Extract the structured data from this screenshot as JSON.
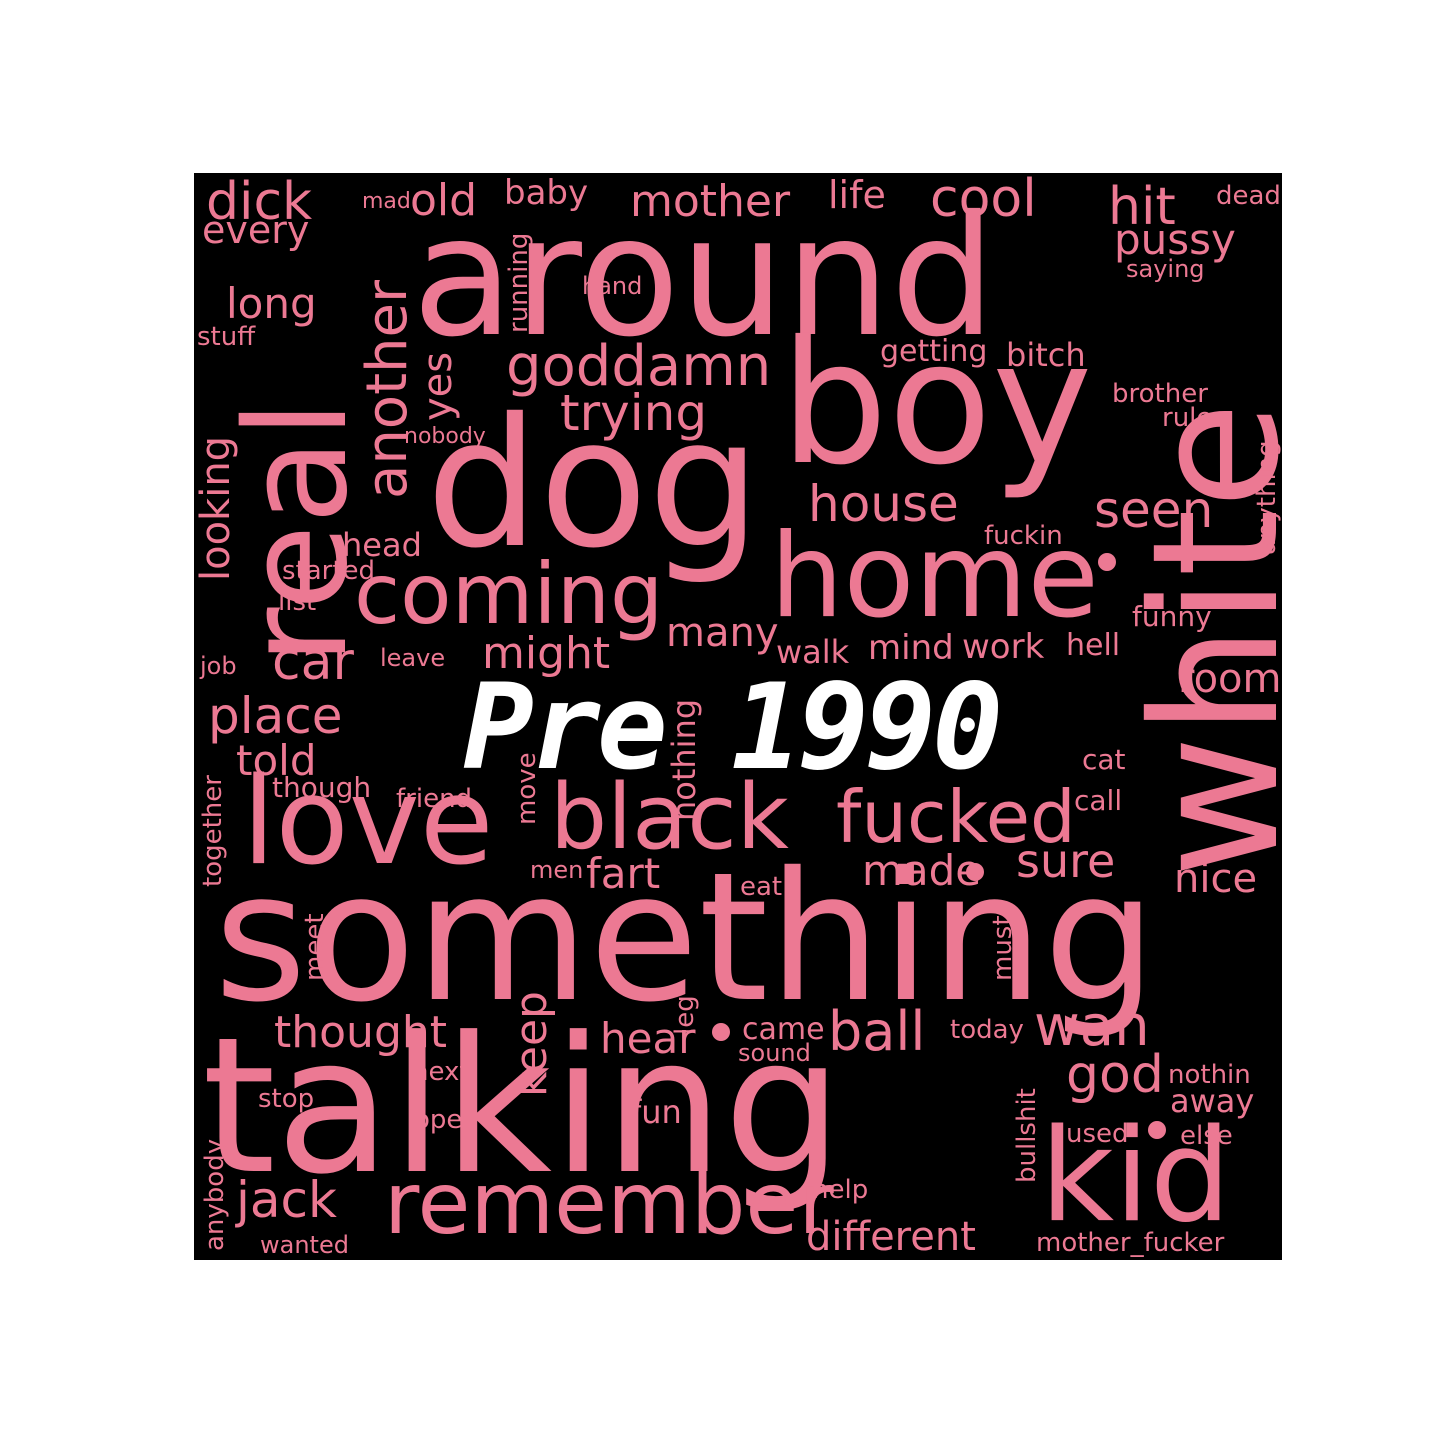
{
  "colors": {
    "background": "#ffffff",
    "panel": "#000000",
    "words": [
      "#e4718d",
      "#ec7993",
      "#f0869e",
      "#e96f8b",
      "#f28aa2"
    ],
    "title_fill": "#ffffff",
    "title_stroke": "#000000"
  },
  "title": "Pre 1990",
  "words": [
    "dick",
    "mad",
    "old",
    "baby",
    "mother",
    "life",
    "cool",
    "hit",
    "dead",
    "every",
    "pussy",
    "saying",
    "hand",
    "long",
    "stuff",
    "getting",
    "bitch",
    "goddamn",
    "brother",
    "trying",
    "rule",
    "nobody",
    "house",
    "seen",
    "head",
    "fuckin",
    "started",
    "list",
    "many",
    "funny",
    "job",
    "leave",
    "might",
    "walk",
    "mind",
    "work",
    "hell",
    "room",
    "place",
    "told",
    "though",
    "friend",
    "cat",
    "call",
    "fart",
    "men",
    "made",
    "sure",
    "nice",
    "eat",
    "thought",
    "hear",
    "came",
    "sound",
    "ball",
    "today",
    "wan",
    "next",
    "god",
    "nothin",
    "stop",
    "open",
    "fun",
    "away",
    "used",
    "else",
    "jack",
    "help",
    "wanted",
    "different",
    "mother_fucker",
    "around",
    "boy",
    "dog",
    "home",
    "coming",
    "car",
    "love",
    "black",
    "fucked",
    "something",
    "talking",
    "remember",
    "kid",
    "real",
    "white",
    "another",
    "yes",
    "looking",
    "running",
    "anything",
    "nothing",
    "together",
    "move",
    "keep",
    "meet",
    "must",
    "leg",
    "bullshit",
    "anybody"
  ]
}
